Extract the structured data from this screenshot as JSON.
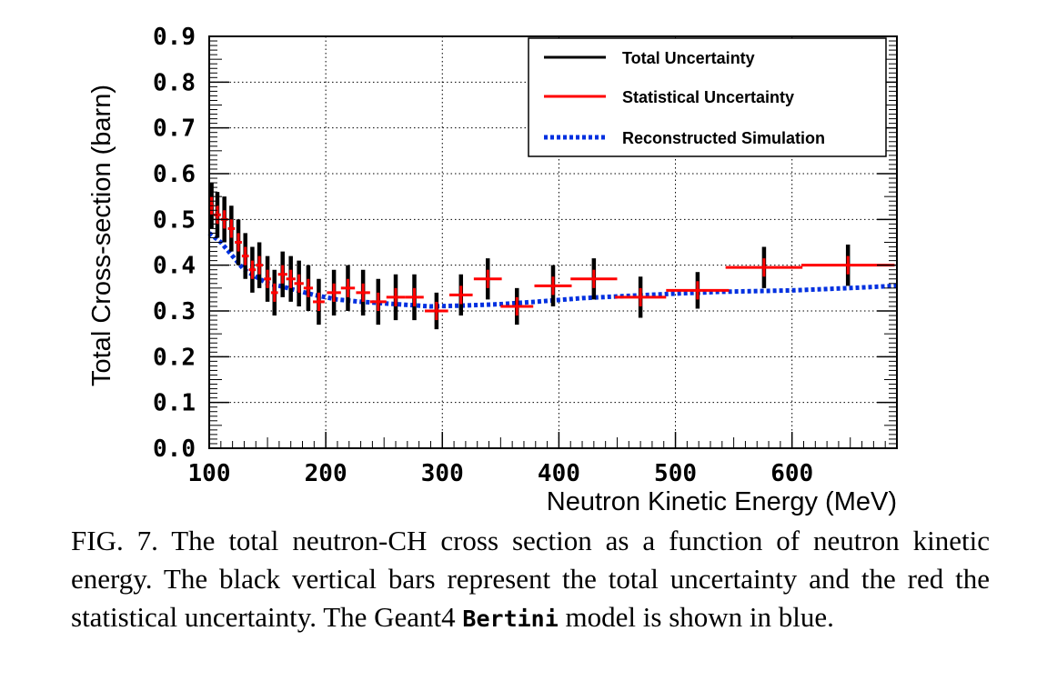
{
  "chart_data": {
    "type": "scatter",
    "xlabel": "Neutron Kinetic Energy (MeV)",
    "ylabel": "Total Cross-section (barn)",
    "xlim": [
      100,
      690
    ],
    "ylim": [
      0,
      0.9
    ],
    "x_ticks": [
      "100",
      "200",
      "300",
      "400",
      "500",
      "600"
    ],
    "y_ticks": [
      "0.0",
      "0.1",
      "0.2",
      "0.3",
      "0.4",
      "0.5",
      "0.6",
      "0.7",
      "0.8",
      "0.9"
    ],
    "grid": true,
    "legend_position": "top-right",
    "legend": [
      {
        "label": "Total Uncertainty",
        "color": "#000000",
        "style": "solid"
      },
      {
        "label": "Statistical Uncertainty",
        "color": "#ff0000",
        "style": "solid"
      },
      {
        "label": "Reconstructed Simulation",
        "color": "#0030e0",
        "style": "dotted"
      }
    ],
    "measurements": [
      {
        "x": 102,
        "y": 0.53,
        "xerr": 2,
        "stat": 0.02,
        "total": 0.05
      },
      {
        "x": 107,
        "y": 0.51,
        "xerr": 3,
        "stat": 0.02,
        "total": 0.05
      },
      {
        "x": 113,
        "y": 0.5,
        "xerr": 3,
        "stat": 0.02,
        "total": 0.05
      },
      {
        "x": 119,
        "y": 0.48,
        "xerr": 3,
        "stat": 0.02,
        "total": 0.05
      },
      {
        "x": 125,
        "y": 0.45,
        "xerr": 3,
        "stat": 0.02,
        "total": 0.05
      },
      {
        "x": 131,
        "y": 0.42,
        "xerr": 3,
        "stat": 0.02,
        "total": 0.05
      },
      {
        "x": 137,
        "y": 0.39,
        "xerr": 3,
        "stat": 0.02,
        "total": 0.05
      },
      {
        "x": 143,
        "y": 0.4,
        "xerr": 3,
        "stat": 0.02,
        "total": 0.05
      },
      {
        "x": 150,
        "y": 0.37,
        "xerr": 3,
        "stat": 0.02,
        "total": 0.05
      },
      {
        "x": 156,
        "y": 0.34,
        "xerr": 3,
        "stat": 0.02,
        "total": 0.05
      },
      {
        "x": 163,
        "y": 0.38,
        "xerr": 4,
        "stat": 0.02,
        "total": 0.05
      },
      {
        "x": 170,
        "y": 0.37,
        "xerr": 4,
        "stat": 0.02,
        "total": 0.05
      },
      {
        "x": 177,
        "y": 0.36,
        "xerr": 4,
        "stat": 0.02,
        "total": 0.05
      },
      {
        "x": 185,
        "y": 0.35,
        "xerr": 4,
        "stat": 0.02,
        "total": 0.05
      },
      {
        "x": 194,
        "y": 0.32,
        "xerr": 5,
        "stat": 0.02,
        "total": 0.05
      },
      {
        "x": 207,
        "y": 0.34,
        "xerr": 6,
        "stat": 0.02,
        "total": 0.05
      },
      {
        "x": 219,
        "y": 0.35,
        "xerr": 6,
        "stat": 0.02,
        "total": 0.05
      },
      {
        "x": 232,
        "y": 0.34,
        "xerr": 6,
        "stat": 0.02,
        "total": 0.05
      },
      {
        "x": 245,
        "y": 0.32,
        "xerr": 7,
        "stat": 0.02,
        "total": 0.05
      },
      {
        "x": 260,
        "y": 0.33,
        "xerr": 8,
        "stat": 0.02,
        "total": 0.05
      },
      {
        "x": 276,
        "y": 0.33,
        "xerr": 8,
        "stat": 0.02,
        "total": 0.05
      },
      {
        "x": 295,
        "y": 0.3,
        "xerr": 10,
        "stat": 0.02,
        "total": 0.04
      },
      {
        "x": 316,
        "y": 0.335,
        "xerr": 10,
        "stat": 0.02,
        "total": 0.045
      },
      {
        "x": 339,
        "y": 0.37,
        "xerr": 12,
        "stat": 0.02,
        "total": 0.045
      },
      {
        "x": 364,
        "y": 0.31,
        "xerr": 14,
        "stat": 0.02,
        "total": 0.04
      },
      {
        "x": 395,
        "y": 0.355,
        "xerr": 16,
        "stat": 0.02,
        "total": 0.045
      },
      {
        "x": 430,
        "y": 0.37,
        "xerr": 20,
        "stat": 0.02,
        "total": 0.045
      },
      {
        "x": 470,
        "y": 0.33,
        "xerr": 22,
        "stat": 0.02,
        "total": 0.045
      },
      {
        "x": 519,
        "y": 0.345,
        "xerr": 27,
        "stat": 0.02,
        "total": 0.04
      },
      {
        "x": 576,
        "y": 0.395,
        "xerr": 33,
        "stat": 0.02,
        "total": 0.045
      },
      {
        "x": 648,
        "y": 0.4,
        "xerr": 40,
        "stat": 0.02,
        "total": 0.045
      }
    ],
    "simulation": {
      "x": [
        100,
        110,
        120,
        130,
        140,
        150,
        160,
        175,
        190,
        210,
        230,
        260,
        290,
        320,
        350,
        380,
        420,
        460,
        500,
        540,
        600,
        650,
        690
      ],
      "y": [
        0.47,
        0.45,
        0.42,
        0.39,
        0.375,
        0.36,
        0.355,
        0.345,
        0.335,
        0.325,
        0.32,
        0.315,
        0.31,
        0.312,
        0.315,
        0.32,
        0.328,
        0.333,
        0.338,
        0.342,
        0.345,
        0.35,
        0.355
      ]
    }
  },
  "caption": {
    "lead": "FIG. 7.  The total neutron-CH cross section as a function of neutron kinetic energy. The black vertical bars represent the total uncertainty and the red the statistical uncertainty. The Geant4 ",
    "model": "Bertini",
    "tail": " model is shown in blue."
  }
}
